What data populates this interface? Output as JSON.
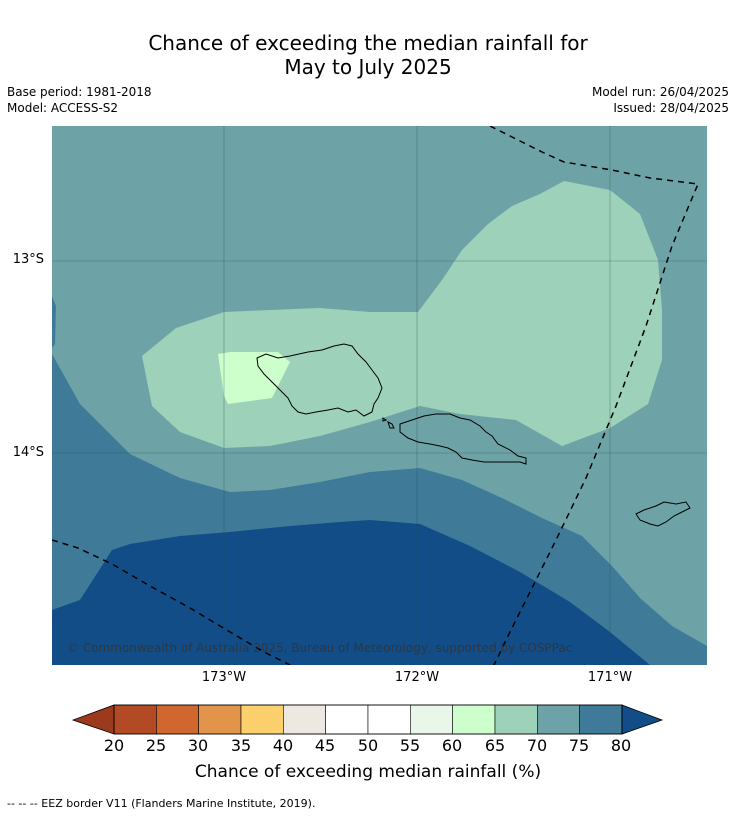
{
  "title_line1": "Chance of exceeding the median rainfall for",
  "title_line2": "May to July 2025",
  "meta_left": {
    "base_period": "Base period: 1981-2018",
    "model": "Model: ACCESS-S2"
  },
  "meta_right": {
    "model_run": "Model run: 26/04/2025",
    "issued": "Issued: 28/04/2025"
  },
  "map": {
    "lat_labels": [
      "13°S",
      "14°S"
    ],
    "lon_labels": [
      "173°W",
      "172°W",
      "171°W"
    ],
    "copyright": "© Commonwealth of Australia 2025, Bureau of Meteorology, supported by COSPPac",
    "colors": {
      "35-40": "#fdd06e",
      "60-65": "#ccffcc",
      "65-70": "#9dd1b9",
      "70-75": "#6da3a6",
      "75-80": "#3f7a98",
      "80+": "#124d87",
      "land_outline": "#000000",
      "eez_border": "#000000"
    },
    "regions": [
      "Savai'i",
      "Upolu",
      "Tutuila"
    ]
  },
  "colorbar": {
    "ticks": [
      "20",
      "25",
      "30",
      "35",
      "40",
      "45",
      "50",
      "55",
      "60",
      "65",
      "70",
      "75",
      "80"
    ],
    "colors": [
      "#b24a25",
      "#d0672f",
      "#e2954a",
      "#fdd06e",
      "#ede8e2",
      "#ffffff",
      "#ffffff",
      "#e9f7ea",
      "#ccffcc",
      "#9dd1b9",
      "#6da3a6",
      "#3f7a98"
    ],
    "low_extend_color": "#9c3a1e",
    "high_extend_color": "#124d87",
    "label": "Chance of exceeding median rainfall (%)"
  },
  "footnote": "--  --  -- EEZ border V11 (Flanders Marine Institute, 2019)."
}
